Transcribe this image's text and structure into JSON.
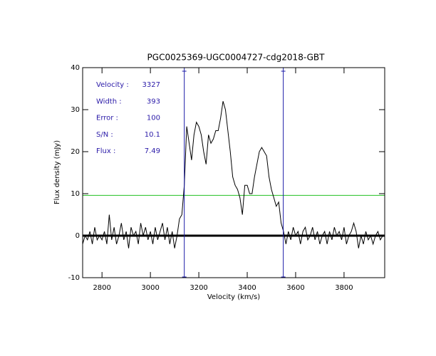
{
  "chart_data": {
    "type": "line",
    "title": "PGC0025369-UGC0004727-cdg2018-GBT",
    "x_label": "Velocity (km/s)",
    "y_label": "Flux density (mJy)",
    "xlim": [
      2720,
      3968
    ],
    "ylim": [
      -10,
      40
    ],
    "xticks": [
      2800,
      3000,
      3200,
      3400,
      3600,
      3800
    ],
    "yticks": [
      -10,
      0,
      10,
      20,
      30,
      40
    ],
    "x": [
      2720,
      2730,
      2740,
      2750,
      2760,
      2770,
      2780,
      2790,
      2800,
      2810,
      2820,
      2830,
      2840,
      2850,
      2860,
      2870,
      2880,
      2890,
      2900,
      2910,
      2920,
      2930,
      2940,
      2950,
      2960,
      2970,
      2980,
      2990,
      3000,
      3010,
      3020,
      3030,
      3040,
      3050,
      3060,
      3070,
      3080,
      3090,
      3100,
      3110,
      3120,
      3130,
      3140,
      3150,
      3160,
      3170,
      3180,
      3190,
      3200,
      3210,
      3220,
      3230,
      3240,
      3250,
      3260,
      3270,
      3280,
      3290,
      3300,
      3310,
      3320,
      3330,
      3340,
      3350,
      3360,
      3370,
      3380,
      3390,
      3400,
      3410,
      3420,
      3430,
      3440,
      3450,
      3460,
      3470,
      3480,
      3490,
      3500,
      3510,
      3520,
      3530,
      3540,
      3550,
      3560,
      3570,
      3580,
      3590,
      3600,
      3610,
      3620,
      3630,
      3640,
      3650,
      3660,
      3670,
      3680,
      3690,
      3700,
      3710,
      3720,
      3730,
      3740,
      3750,
      3760,
      3770,
      3780,
      3790,
      3800,
      3810,
      3820,
      3830,
      3840,
      3850,
      3860,
      3870,
      3880,
      3890,
      3900,
      3910,
      3920,
      3930,
      3940,
      3950,
      3960
    ],
    "series": [
      {
        "color": "#000000",
        "values": [
          -2,
          0,
          -1,
          1,
          -2,
          2,
          -1,
          0,
          -1,
          1,
          -2,
          5,
          -1,
          2,
          -2,
          0,
          3,
          -1,
          1,
          -3,
          2,
          0,
          1,
          -2,
          3,
          0,
          2,
          -1,
          1,
          -2,
          2,
          -1,
          1,
          3,
          -1,
          2,
          -2,
          1,
          -3,
          0,
          4,
          5,
          12,
          26,
          22,
          18,
          24,
          27,
          26,
          24,
          20,
          17,
          24,
          22,
          23,
          25,
          25,
          28,
          32,
          30,
          25,
          20,
          14,
          12,
          11,
          9,
          5,
          12,
          12,
          10,
          10,
          14,
          17,
          20,
          21,
          20,
          19,
          14,
          11,
          9,
          7,
          8,
          3,
          1,
          -2,
          1,
          -1,
          2,
          0,
          1,
          -2,
          1,
          2,
          -1,
          0,
          2,
          -1,
          1,
          -2,
          0,
          1,
          -2,
          1,
          -1,
          2,
          0,
          1,
          -1,
          2,
          -2,
          0,
          1,
          3,
          1,
          -3,
          0,
          -2,
          1,
          -1,
          0,
          -2,
          0,
          1,
          -1,
          0
        ]
      }
    ],
    "hlines": [
      {
        "value": 0,
        "color": "#000000"
      },
      {
        "value": 9.6,
        "color": "#22c022"
      }
    ],
    "vlines": [
      {
        "value": 3140,
        "color": "#1a1aa8"
      },
      {
        "value": 3549,
        "color": "#1a1aa8"
      }
    ],
    "annotations": [
      {
        "label": "Velocity :",
        "value": 3327
      },
      {
        "label": "Width :",
        "value": 393
      },
      {
        "label": "Error :",
        "value": 100
      },
      {
        "label": "S/N :",
        "value": 10.1
      },
      {
        "label": "Flux :",
        "value": 7.49
      }
    ]
  }
}
